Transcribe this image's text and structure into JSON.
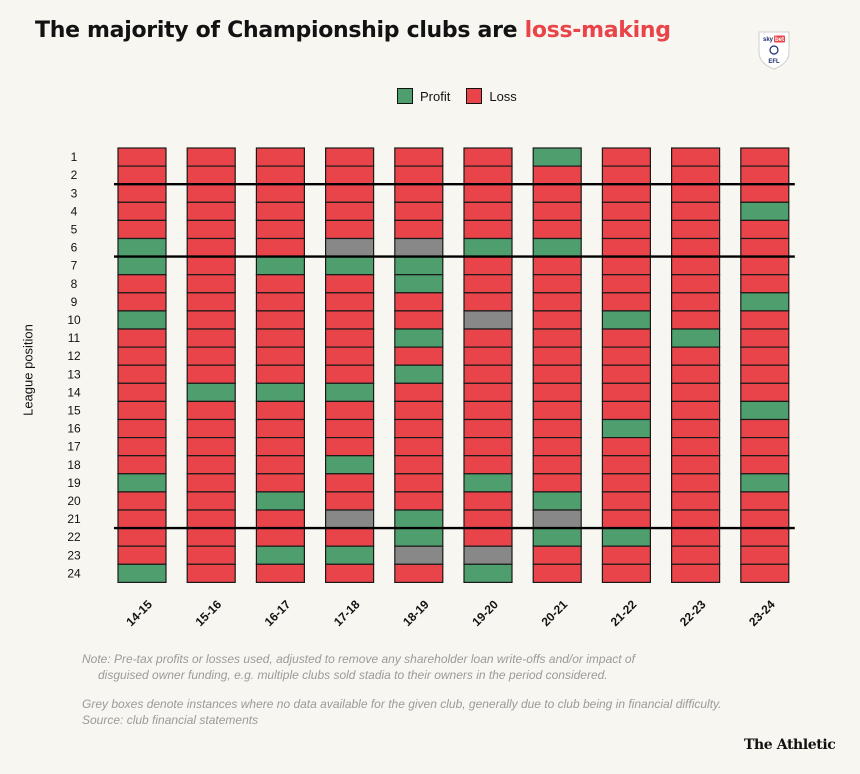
{
  "title": {
    "prefix": "The majority of Championship clubs are ",
    "highlight": "loss-making"
  },
  "logo": {
    "text_top": "sky",
    "text_mid": "bet",
    "text_bottom": "EFL"
  },
  "colors": {
    "profit": "#4f9e6e",
    "loss": "#e9444a",
    "no_data": "#888888",
    "highlight": "#e9444a"
  },
  "legend": {
    "profit_label": "Profit",
    "loss_label": "Loss"
  },
  "note": {
    "line1": "Note: Pre-tax profits or losses used, adjusted to remove any shareholder loan write-offs and/or impact of",
    "line2": "disguised owner funding, e.g. multiple clubs sold stadia to their owners in the period considered.",
    "line3": "Grey boxes denote instances where no data available for the given club, generally due to club being in financial difficulty.",
    "source": "Source: club financial statements"
  },
  "branding": "The Athletic",
  "chart_data": {
    "type": "heatmap",
    "ylabel": "League position",
    "seasons": [
      "14-15",
      "15-16",
      "16-17",
      "17-18",
      "18-19",
      "19-20",
      "20-21",
      "21-22",
      "22-23",
      "23-24"
    ],
    "positions": [
      "1",
      "2",
      "3",
      "4",
      "5",
      "6",
      "7",
      "8",
      "9",
      "10",
      "11",
      "12",
      "13",
      "14",
      "15",
      "16",
      "17",
      "18",
      "19",
      "20",
      "21",
      "22",
      "23",
      "24"
    ],
    "categories": {
      "P": "Profit",
      "L": "Loss",
      "N": "No data"
    },
    "cells": [
      [
        "L",
        "L",
        "L",
        "L",
        "L",
        "P",
        "P",
        "L",
        "L",
        "P",
        "L",
        "L",
        "L",
        "L",
        "L",
        "L",
        "L",
        "L",
        "P",
        "L",
        "L",
        "L",
        "L",
        "P"
      ],
      [
        "L",
        "L",
        "L",
        "L",
        "L",
        "L",
        "L",
        "L",
        "L",
        "L",
        "L",
        "L",
        "L",
        "P",
        "L",
        "L",
        "L",
        "L",
        "L",
        "L",
        "L",
        "L",
        "L",
        "L"
      ],
      [
        "L",
        "L",
        "L",
        "L",
        "L",
        "L",
        "P",
        "L",
        "L",
        "L",
        "L",
        "L",
        "L",
        "P",
        "L",
        "L",
        "L",
        "L",
        "L",
        "P",
        "L",
        "L",
        "P",
        "L"
      ],
      [
        "L",
        "L",
        "L",
        "L",
        "L",
        "N",
        "P",
        "L",
        "L",
        "L",
        "L",
        "L",
        "L",
        "P",
        "L",
        "L",
        "L",
        "P",
        "L",
        "L",
        "N",
        "L",
        "P",
        "L"
      ],
      [
        "L",
        "L",
        "L",
        "L",
        "L",
        "N",
        "P",
        "P",
        "L",
        "L",
        "P",
        "L",
        "P",
        "L",
        "L",
        "L",
        "L",
        "L",
        "L",
        "L",
        "P",
        "P",
        "N",
        "L"
      ],
      [
        "L",
        "L",
        "L",
        "L",
        "L",
        "P",
        "L",
        "L",
        "L",
        "N",
        "L",
        "L",
        "L",
        "L",
        "L",
        "L",
        "L",
        "L",
        "P",
        "L",
        "L",
        "L",
        "N",
        "P"
      ],
      [
        "P",
        "L",
        "L",
        "L",
        "L",
        "P",
        "L",
        "L",
        "L",
        "L",
        "L",
        "L",
        "L",
        "L",
        "L",
        "L",
        "L",
        "L",
        "L",
        "P",
        "N",
        "P",
        "L",
        "L"
      ],
      [
        "L",
        "L",
        "L",
        "L",
        "L",
        "L",
        "L",
        "L",
        "L",
        "P",
        "L",
        "L",
        "L",
        "L",
        "L",
        "P",
        "L",
        "L",
        "L",
        "L",
        "L",
        "P",
        "L",
        "L"
      ],
      [
        "L",
        "L",
        "L",
        "L",
        "L",
        "L",
        "L",
        "L",
        "L",
        "L",
        "P",
        "L",
        "L",
        "L",
        "L",
        "L",
        "L",
        "L",
        "L",
        "L",
        "L",
        "L",
        "L",
        "L"
      ],
      [
        "L",
        "L",
        "L",
        "P",
        "L",
        "L",
        "L",
        "L",
        "P",
        "L",
        "L",
        "L",
        "L",
        "L",
        "P",
        "L",
        "L",
        "L",
        "P",
        "L",
        "L",
        "L",
        "L",
        "L"
      ]
    ],
    "divider_after_positions": [
      2,
      6,
      21
    ]
  }
}
